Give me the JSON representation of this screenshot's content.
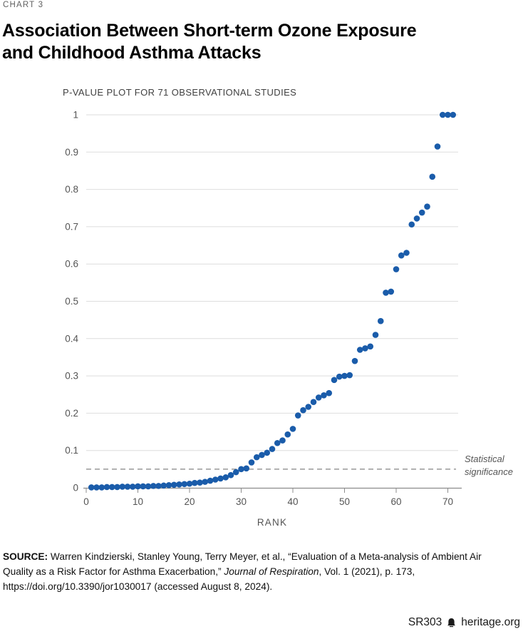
{
  "page": {
    "kicker": "CHART 3",
    "title_lines": [
      "Association Between Short-term Ozone Exposure",
      "and Childhood Asthma Attacks"
    ]
  },
  "chart_data": {
    "type": "scatter",
    "subtitle": "P-VALUE PLOT FOR 71 OBSERVATIONAL STUDIES",
    "xlabel": "RANK",
    "ylabel": "",
    "xlim": [
      0,
      72
    ],
    "ylim": [
      0,
      1
    ],
    "x_ticks": [
      0,
      10,
      20,
      30,
      40,
      50,
      60,
      70
    ],
    "y_ticks": [
      0,
      0.1,
      0.2,
      0.3,
      0.4,
      0.5,
      0.6,
      0.7,
      0.8,
      0.9,
      1
    ],
    "grid": "horizontal",
    "dot_color": "#1a5caa",
    "grid_color": "#dedede",
    "axis_color": "#8c8c8c",
    "tick_label_color": "#545454",
    "annotation": {
      "label": "Statistical significance",
      "value": 0.05,
      "line_style": "dashed",
      "line_color": "#a0a0a0"
    },
    "series": [
      {
        "name": "p-values of 71 observational studies (ranked ascending, rank 1-71)",
        "p_values": [
          0.001,
          0.001,
          0.001,
          0.002,
          0.002,
          0.002,
          0.003,
          0.003,
          0.003,
          0.004,
          0.004,
          0.004,
          0.005,
          0.005,
          0.006,
          0.007,
          0.008,
          0.009,
          0.01,
          0.011,
          0.013,
          0.014,
          0.016,
          0.019,
          0.022,
          0.025,
          0.028,
          0.034,
          0.042,
          0.05,
          0.052,
          0.068,
          0.082,
          0.088,
          0.094,
          0.104,
          0.12,
          0.127,
          0.143,
          0.158,
          0.194,
          0.208,
          0.217,
          0.23,
          0.242,
          0.248,
          0.254,
          0.289,
          0.298,
          0.3,
          0.302,
          0.34,
          0.37,
          0.374,
          0.379,
          0.41,
          0.447,
          0.523,
          0.526,
          0.586,
          0.623,
          0.63,
          0.706,
          0.722,
          0.738,
          0.754,
          0.834,
          0.915,
          1.0,
          1.0,
          1.0
        ]
      }
    ]
  },
  "source": {
    "label": "SOURCE:",
    "text_before_italic": " Warren Kindzierski, Stanley Young, Terry Meyer, et al., “Evaluation of a Meta-analysis of Ambient Air Quality as a Risk Factor for Asthma Exacerbation,” ",
    "italic": "Journal of Respiration",
    "text_after_italic": ", Vol. 1 (2021), p. 173, https://doi.org/10.3390/jor1030017 (accessed August 8, 2024)."
  },
  "footer": {
    "report_id": "SR303",
    "site": "heritage.org",
    "logo": "heritage-bell-icon"
  }
}
